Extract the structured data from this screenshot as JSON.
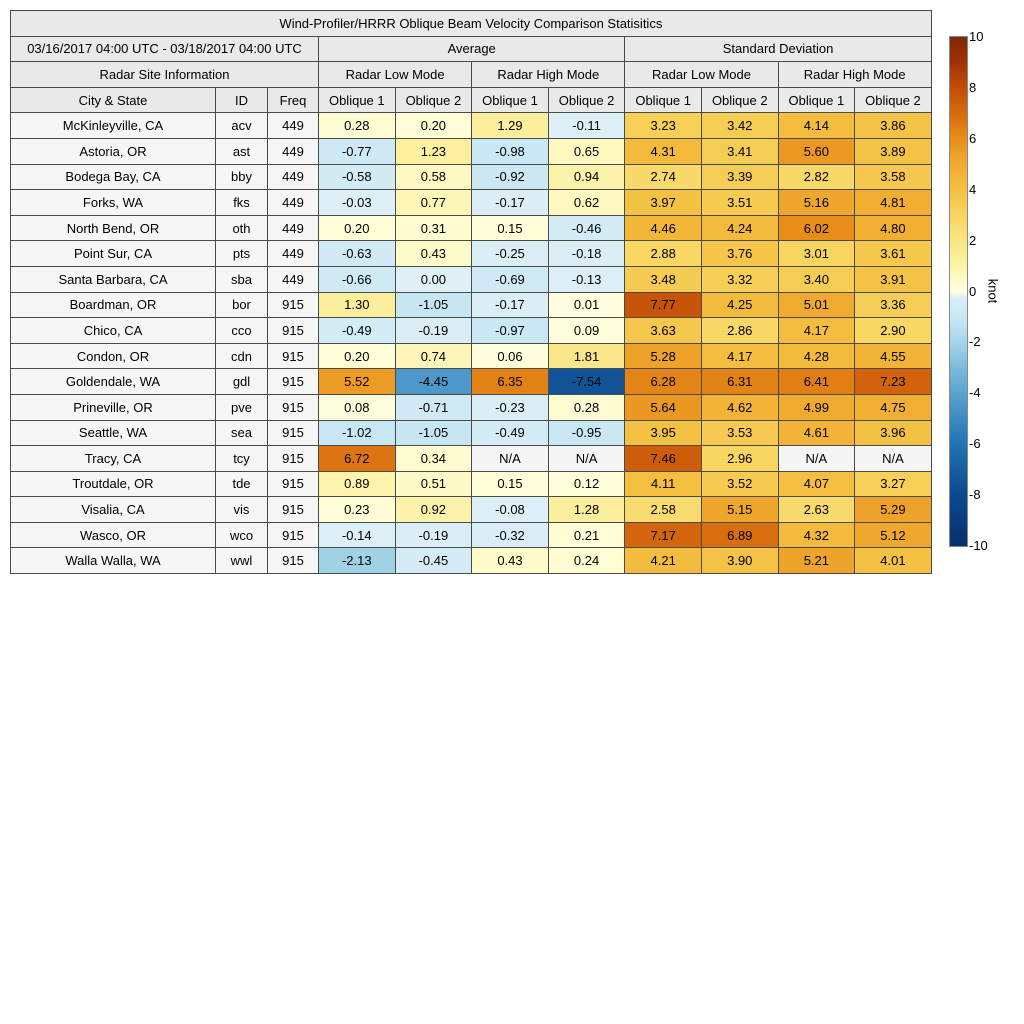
{
  "title": "Wind-Profiler/HRRR Oblique Beam Velocity Comparison Statisitics",
  "date_range": "03/16/2017 04:00 UTC - 03/18/2017 04:00 UTC",
  "headers": {
    "average": "Average",
    "standard_deviation": "Standard Deviation",
    "site_info": "Radar Site Information",
    "low_mode": "Radar Low Mode",
    "high_mode": "Radar High Mode",
    "city": "City & State",
    "id": "ID",
    "freq": "Freq",
    "oblique1": "Oblique 1",
    "oblique2": "Oblique 2"
  },
  "colorbar": {
    "label": "knot",
    "ticks": [
      10,
      8,
      6,
      4,
      2,
      0,
      -2,
      -4,
      -6,
      -8,
      -10
    ],
    "vmin": -10,
    "vmax": 10,
    "colormap_stops": [
      [
        -10,
        "#08306B"
      ],
      [
        -8,
        "#0D488F"
      ],
      [
        -6,
        "#2272B2"
      ],
      [
        -4.5,
        "#4A97C8"
      ],
      [
        -3,
        "#7BBBD9"
      ],
      [
        -2,
        "#A5D5E8"
      ],
      [
        -1,
        "#C9E7F4"
      ],
      [
        -0.001,
        "#DFF0F7"
      ],
      [
        0,
        "#FFFFE0"
      ],
      [
        0.5,
        "#FEFAC8"
      ],
      [
        1,
        "#FCF2A6"
      ],
      [
        2,
        "#FAE584"
      ],
      [
        3,
        "#F8D55F"
      ],
      [
        4,
        "#F4C142"
      ],
      [
        5,
        "#F0AA2F"
      ],
      [
        6,
        "#E88E1A"
      ],
      [
        7,
        "#D66A0D"
      ],
      [
        8,
        "#C44D07"
      ],
      [
        9,
        "#A03205"
      ],
      [
        10,
        "#7F2704"
      ]
    ]
  },
  "style_colors": {
    "header_bg": "#e9e9e9",
    "label_cell_bg": "#f6f6f6",
    "na_cell_bg": "#f5f5f5",
    "grid_border": "#4a4a4a"
  },
  "chart_data": {
    "type": "table",
    "title": "Wind-Profiler/HRRR Oblique Beam Velocity Comparison Statisitics",
    "period": "03/16/2017 04:00 UTC - 03/18/2017 04:00 UTC",
    "units": "knot",
    "value_columns": [
      "Average Radar Low Mode Oblique 1",
      "Average Radar Low Mode Oblique 2",
      "Average Radar High Mode Oblique 1",
      "Average Radar High Mode Oblique 2",
      "Standard Deviation Radar Low Mode Oblique 1",
      "Standard Deviation Radar Low Mode Oblique 2",
      "Standard Deviation Radar High Mode Oblique 1",
      "Standard Deviation Radar High Mode Oblique 2"
    ],
    "rows": [
      {
        "city": "McKinleyville, CA",
        "id": "acv",
        "freq": "449",
        "values": [
          "0.28",
          "0.20",
          "1.29",
          "-0.11",
          "3.23",
          "3.42",
          "4.14",
          "3.86"
        ]
      },
      {
        "city": "Astoria, OR",
        "id": "ast",
        "freq": "449",
        "values": [
          "-0.77",
          "1.23",
          "-0.98",
          "0.65",
          "4.31",
          "3.41",
          "5.60",
          "3.89"
        ]
      },
      {
        "city": "Bodega Bay, CA",
        "id": "bby",
        "freq": "449",
        "values": [
          "-0.58",
          "0.58",
          "-0.92",
          "0.94",
          "2.74",
          "3.39",
          "2.82",
          "3.58"
        ]
      },
      {
        "city": "Forks, WA",
        "id": "fks",
        "freq": "449",
        "values": [
          "-0.03",
          "0.77",
          "-0.17",
          "0.62",
          "3.97",
          "3.51",
          "5.16",
          "4.81"
        ]
      },
      {
        "city": "North Bend, OR",
        "id": "oth",
        "freq": "449",
        "values": [
          "0.20",
          "0.31",
          "0.15",
          "-0.46",
          "4.46",
          "4.24",
          "6.02",
          "4.80"
        ]
      },
      {
        "city": "Point Sur, CA",
        "id": "pts",
        "freq": "449",
        "values": [
          "-0.63",
          "0.43",
          "-0.25",
          "-0.18",
          "2.88",
          "3.76",
          "3.01",
          "3.61"
        ]
      },
      {
        "city": "Santa Barbara, CA",
        "id": "sba",
        "freq": "449",
        "values": [
          "-0.66",
          "0.00",
          "-0.69",
          "-0.13",
          "3.48",
          "3.32",
          "3.40",
          "3.91"
        ]
      },
      {
        "city": "Boardman, OR",
        "id": "bor",
        "freq": "915",
        "values": [
          "1.30",
          "-1.05",
          "-0.17",
          "0.01",
          "7.77",
          "4.25",
          "5.01",
          "3.36"
        ]
      },
      {
        "city": "Chico, CA",
        "id": "cco",
        "freq": "915",
        "values": [
          "-0.49",
          "-0.19",
          "-0.97",
          "0.09",
          "3.63",
          "2.86",
          "4.17",
          "2.90"
        ]
      },
      {
        "city": "Condon, OR",
        "id": "cdn",
        "freq": "915",
        "values": [
          "0.20",
          "0.74",
          "0.06",
          "1.81",
          "5.28",
          "4.17",
          "4.28",
          "4.55"
        ]
      },
      {
        "city": "Goldendale, WA",
        "id": "gdl",
        "freq": "915",
        "values": [
          "5.52",
          "-4.45",
          "6.35",
          "-7.54",
          "6.28",
          "6.31",
          "6.41",
          "7.23"
        ]
      },
      {
        "city": "Prineville, OR",
        "id": "pve",
        "freq": "915",
        "values": [
          "0.08",
          "-0.71",
          "-0.23",
          "0.28",
          "5.64",
          "4.62",
          "4.99",
          "4.75"
        ]
      },
      {
        "city": "Seattle, WA",
        "id": "sea",
        "freq": "915",
        "values": [
          "-1.02",
          "-1.05",
          "-0.49",
          "-0.95",
          "3.95",
          "3.53",
          "4.61",
          "3.96"
        ]
      },
      {
        "city": "Tracy, CA",
        "id": "tcy",
        "freq": "915",
        "values": [
          "6.72",
          "0.34",
          "N/A",
          "N/A",
          "7.46",
          "2.96",
          "N/A",
          "N/A"
        ]
      },
      {
        "city": "Troutdale, OR",
        "id": "tde",
        "freq": "915",
        "values": [
          "0.89",
          "0.51",
          "0.15",
          "0.12",
          "4.11",
          "3.52",
          "4.07",
          "3.27"
        ]
      },
      {
        "city": "Visalia, CA",
        "id": "vis",
        "freq": "915",
        "values": [
          "0.23",
          "0.92",
          "-0.08",
          "1.28",
          "2.58",
          "5.15",
          "2.63",
          "5.29"
        ]
      },
      {
        "city": "Wasco, OR",
        "id": "wco",
        "freq": "915",
        "values": [
          "-0.14",
          "-0.19",
          "-0.32",
          "0.21",
          "7.17",
          "6.89",
          "4.32",
          "5.12"
        ]
      },
      {
        "city": "Walla Walla, WA",
        "id": "wwl",
        "freq": "915",
        "values": [
          "-2.13",
          "-0.45",
          "0.43",
          "0.24",
          "4.21",
          "3.90",
          "5.21",
          "4.01"
        ]
      }
    ]
  }
}
